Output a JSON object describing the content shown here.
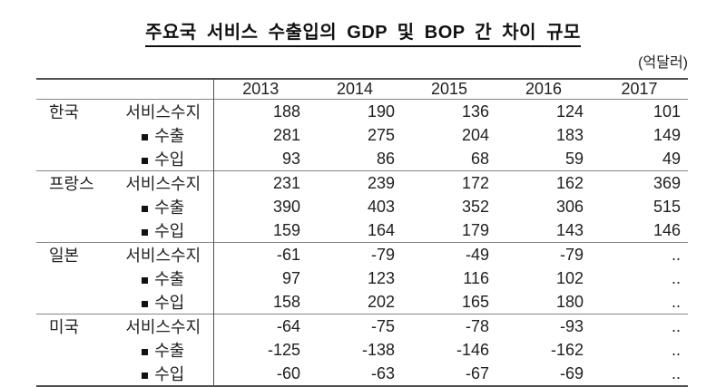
{
  "page": {
    "title": "주요국 서비스 수출입의 GDP 및 BOP 간 차이 규모",
    "unit_label": "(억달러)"
  },
  "table": {
    "years": [
      "2013",
      "2014",
      "2015",
      "2016",
      "2017"
    ],
    "groups": [
      {
        "country": "한국",
        "rows": [
          {
            "label": "서비스수지",
            "bullet": false,
            "values": [
              "188",
              "190",
              "136",
              "124",
              "101"
            ]
          },
          {
            "label": "수출",
            "bullet": true,
            "values": [
              "281",
              "275",
              "204",
              "183",
              "149"
            ]
          },
          {
            "label": "수입",
            "bullet": true,
            "values": [
              "93",
              "86",
              "68",
              "59",
              "49"
            ]
          }
        ]
      },
      {
        "country": "프랑스",
        "rows": [
          {
            "label": "서비스수지",
            "bullet": false,
            "values": [
              "231",
              "239",
              "172",
              "162",
              "369"
            ]
          },
          {
            "label": "수출",
            "bullet": true,
            "values": [
              "390",
              "403",
              "352",
              "306",
              "515"
            ]
          },
          {
            "label": "수입",
            "bullet": true,
            "values": [
              "159",
              "164",
              "179",
              "143",
              "146"
            ]
          }
        ]
      },
      {
        "country": "일본",
        "rows": [
          {
            "label": "서비스수지",
            "bullet": false,
            "values": [
              "-61",
              "-79",
              "-49",
              "-79",
              ".."
            ]
          },
          {
            "label": "수출",
            "bullet": true,
            "values": [
              "97",
              "123",
              "116",
              "102",
              ".."
            ]
          },
          {
            "label": "수입",
            "bullet": true,
            "values": [
              "158",
              "202",
              "165",
              "180",
              ".."
            ]
          }
        ]
      },
      {
        "country": "미국",
        "rows": [
          {
            "label": "서비스수지",
            "bullet": false,
            "values": [
              "-64",
              "-75",
              "-78",
              "-93",
              ".."
            ]
          },
          {
            "label": "수출",
            "bullet": true,
            "values": [
              "-125",
              "-138",
              "-146",
              "-162",
              ".."
            ]
          },
          {
            "label": "수입",
            "bullet": true,
            "values": [
              "-60",
              "-63",
              "-67",
              "-69",
              ".."
            ]
          }
        ]
      }
    ]
  }
}
